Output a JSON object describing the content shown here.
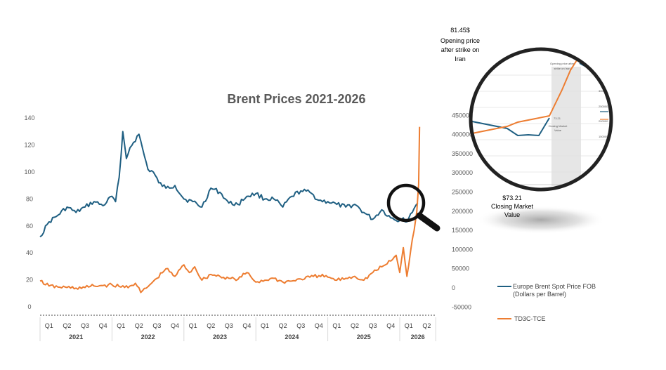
{
  "chart_data": {
    "type": "line",
    "title": "Brent Prices 2021-2026",
    "left_axis": {
      "ticks": [
        "0",
        "20",
        "40",
        "60",
        "80",
        "100",
        "120",
        "140"
      ],
      "ylim": [
        0,
        140
      ]
    },
    "right_axis": {
      "ticks": [
        "-50000",
        "0",
        "50000",
        "100000",
        "150000",
        "200000",
        "250000",
        "300000",
        "350000",
        "400000",
        "450000"
      ],
      "ylim": [
        -50000,
        450000
      ]
    },
    "quarter_labels": [
      "Q1",
      "Q2",
      "Q3",
      "Q4",
      "Q1",
      "Q2",
      "Q3",
      "Q4",
      "Q1",
      "Q2",
      "Q3",
      "Q4",
      "Q1",
      "Q2",
      "Q3",
      "Q4",
      "Q1",
      "Q2",
      "Q3",
      "Q4",
      "Q1",
      "Q2"
    ],
    "year_labels": [
      "2021",
      "2022",
      "2023",
      "2024",
      "2025",
      "2026"
    ],
    "year_quarter_counts": [
      4,
      4,
      4,
      4,
      4,
      2
    ],
    "series": [
      {
        "name": "Europe Brent Spot Price FOB (Dollars per Barrel)",
        "axis": "left",
        "color": "#1f5f82",
        "x": [
          0,
          0.5,
          1,
          1.5,
          2,
          2.5,
          3,
          3.5,
          4,
          4.2,
          4.4,
          4.6,
          4.8,
          5,
          5.2,
          5.5,
          5.8,
          6,
          6.3,
          6.6,
          7,
          7.5,
          8,
          8.5,
          9,
          9.5,
          10,
          10.5,
          11,
          11.5,
          12,
          12.5,
          13,
          13.5,
          14,
          14.5,
          15,
          15.5,
          16,
          16.5,
          17,
          17.5,
          18,
          18.5,
          19,
          19.5,
          20,
          20.2,
          20.4,
          20.6,
          20.8,
          21
        ],
        "values": [
          52,
          63,
          68,
          74,
          70,
          74,
          78,
          75,
          82,
          78,
          96,
          130,
          110,
          118,
          122,
          128,
          112,
          102,
          100,
          92,
          88,
          90,
          80,
          78,
          74,
          88,
          85,
          77,
          76,
          82,
          84,
          80,
          80,
          74,
          82,
          86,
          85,
          79,
          78,
          76,
          74,
          76,
          70,
          65,
          72,
          66,
          64,
          66,
          63,
          69,
          73,
          77
        ]
      },
      {
        "name": "TD3C-TCE",
        "axis": "right",
        "color": "#ed7d31",
        "x": [
          0,
          0.5,
          1,
          1.5,
          2,
          2.5,
          3,
          3.5,
          4,
          4.5,
          5,
          5.3,
          5.6,
          6,
          6.5,
          7,
          7.5,
          8,
          8.3,
          8.6,
          9,
          9.5,
          10,
          10.5,
          11,
          11.5,
          12,
          12.5,
          13,
          13.5,
          14,
          14.5,
          15,
          15.5,
          16,
          16.5,
          17,
          17.5,
          18,
          18.5,
          19,
          19.2,
          19.5,
          19.8,
          20,
          20.2,
          20.4,
          20.6,
          20.8,
          20.95,
          21.05,
          21.1
        ],
        "values": [
          18000,
          5000,
          2000,
          1000,
          -500,
          1000,
          5000,
          6000,
          8000,
          2000,
          5000,
          12000,
          -12000,
          3000,
          25000,
          50000,
          30000,
          60000,
          40000,
          55000,
          20000,
          35000,
          30000,
          25000,
          22000,
          40000,
          15000,
          20000,
          25000,
          15000,
          18000,
          23000,
          28000,
          32000,
          28000,
          20000,
          25000,
          30000,
          20000,
          40000,
          55000,
          60000,
          70000,
          85000,
          40000,
          105000,
          30000,
          95000,
          150000,
          200000,
          270000,
          420000
        ]
      }
    ],
    "annotations": [
      {
        "label": "81.45$ Opening price after strike on Iran",
        "lines": [
          "81.45$",
          "Opening price",
          "after strike on",
          "Iran"
        ]
      },
      {
        "label": "$73.21 Closing Market Value",
        "lines": [
          "$73.21",
          "Closing Market",
          "Value"
        ]
      }
    ],
    "inset": {
      "label_open": [
        "81.45",
        "Opening price after",
        "strike on Iran"
      ],
      "label_close": [
        "73.21",
        "Closing Market",
        "Value"
      ],
      "legend": [
        "Series1",
        "TD3C-TCE"
      ],
      "right_ticks": [
        "400000",
        "350000",
        "300000",
        "250000",
        "200000",
        "150000",
        "50000"
      ]
    },
    "legend_position": "right"
  }
}
